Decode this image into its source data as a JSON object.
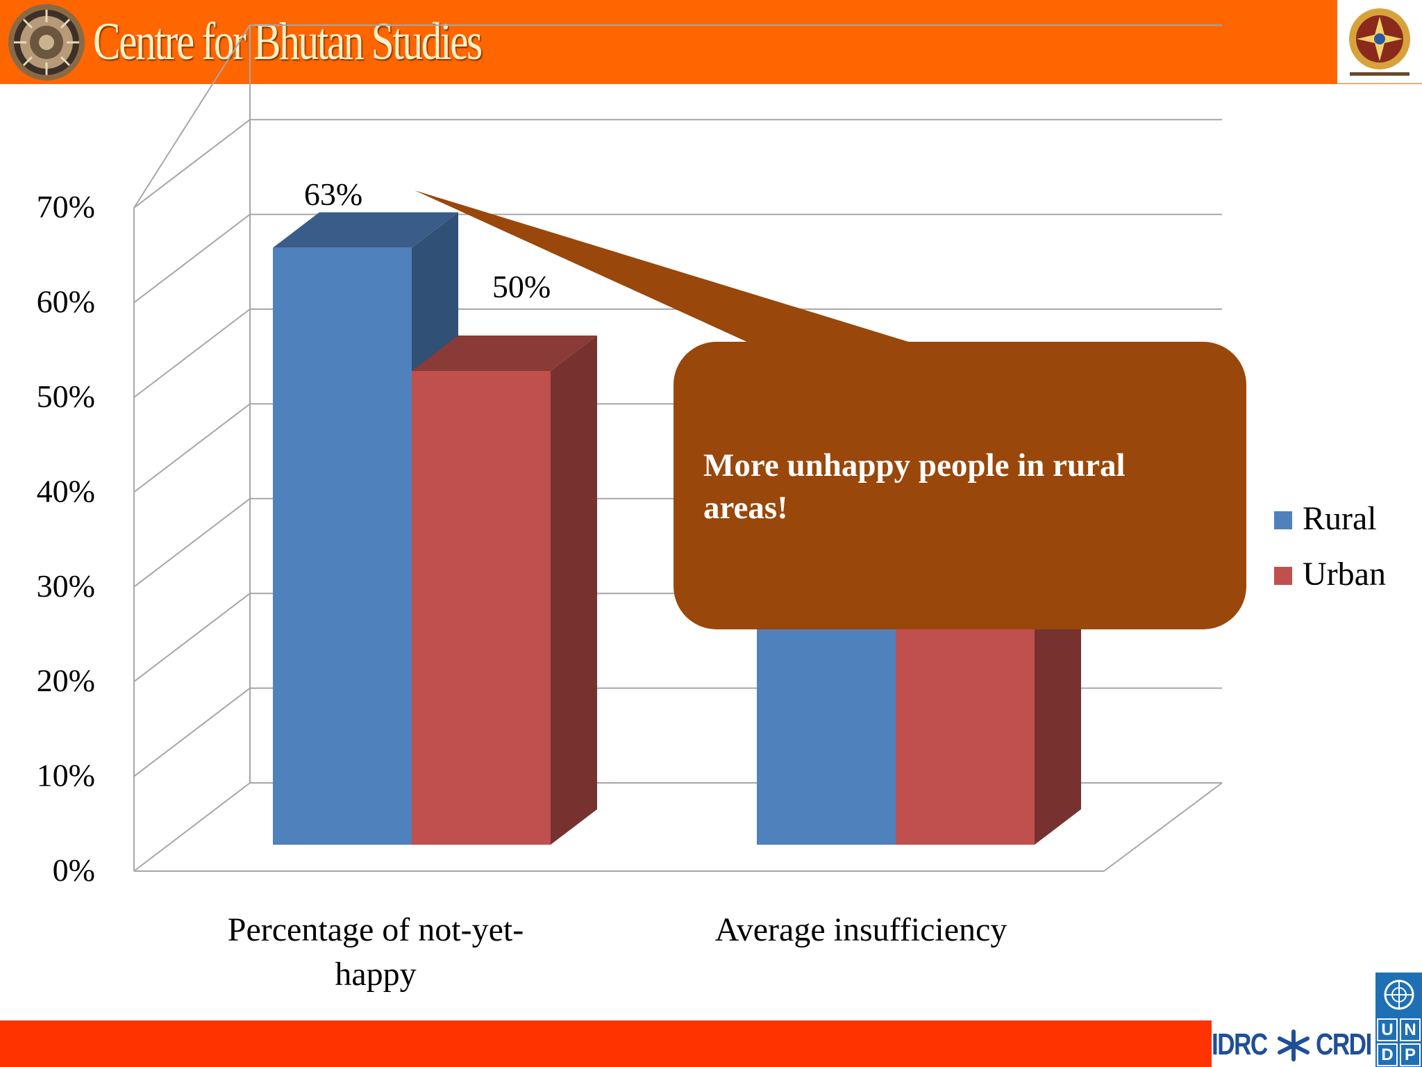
{
  "header": {
    "title": "Centre for Bhutan Studies"
  },
  "chart_data": {
    "type": "bar",
    "categories": [
      "Percentage of not-yet-happy",
      "Average insufficiency"
    ],
    "category_lines": [
      [
        "Percentage of not-yet-",
        "happy"
      ],
      [
        "Average insufficiency"
      ]
    ],
    "series": [
      {
        "name": "Rural",
        "values": [
          63,
          44
        ],
        "color": "#4f81bd"
      },
      {
        "name": "Urban",
        "values": [
          50,
          44
        ],
        "color": "#c0504d"
      }
    ],
    "data_labels": [
      "63%",
      "50%"
    ],
    "yticks": [
      "0%",
      "10%",
      "20%",
      "30%",
      "40%",
      "50%",
      "60%",
      "70%"
    ],
    "ylim": [
      0,
      70
    ],
    "legend_position": "right",
    "grid": true,
    "three_d": true
  },
  "callout": {
    "line1": "More unhappy people in rural",
    "line2": "areas!",
    "color": "#99470b"
  },
  "footer": {
    "idrc": "IDRC",
    "crdi": "CRDI",
    "undp": [
      "U",
      "N",
      "D",
      "P"
    ]
  },
  "colors": {
    "header": "#ff6600",
    "footer": "#ff3300"
  }
}
